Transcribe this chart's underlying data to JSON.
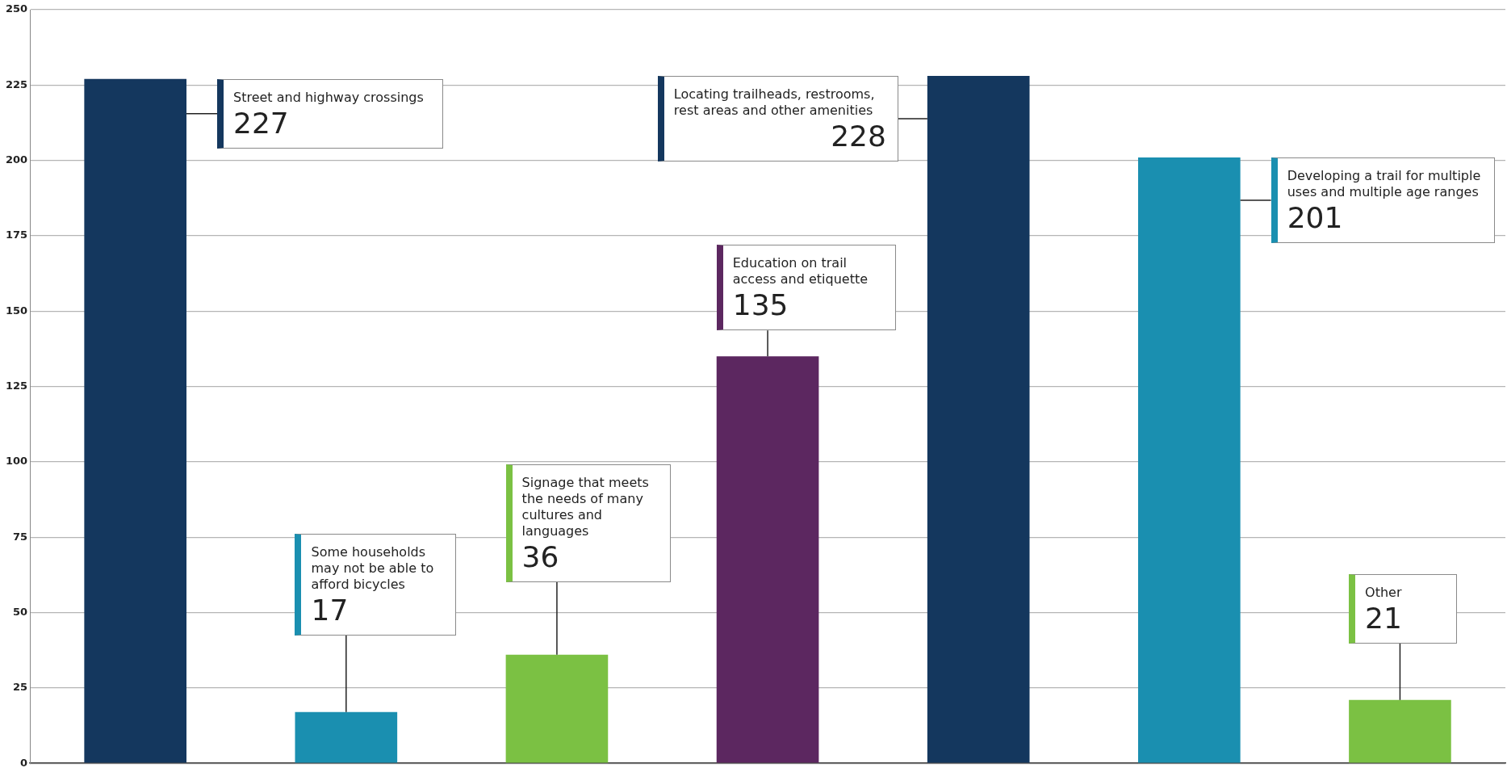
{
  "chart_data": {
    "type": "bar",
    "categories": [
      null,
      null,
      null,
      null,
      null,
      null,
      null
    ],
    "values": [
      227,
      17,
      36,
      135,
      228,
      201,
      21
    ],
    "colors": [
      "#14375e",
      "#1a8fb0",
      "#7bc143",
      "#5c2760",
      "#14375e",
      "#1a8fb0",
      "#7bc143"
    ],
    "annotations": [
      "Street and highway crossings",
      "Some households may not be able to afford bicycles",
      "Signage that meets the needs of many cultures and languages",
      "Education on trail access and etiquette",
      "Locating trailheads, restrooms, rest areas and other amenities",
      "Developing a trail for multiple uses and multiple age ranges",
      "Other"
    ],
    "ylim": [
      0,
      250
    ],
    "yticks": [
      0,
      25,
      50,
      75,
      100,
      125,
      150,
      175,
      200,
      225,
      250
    ],
    "grid": "y",
    "tick_labels": "y",
    "data_labels": true
  }
}
